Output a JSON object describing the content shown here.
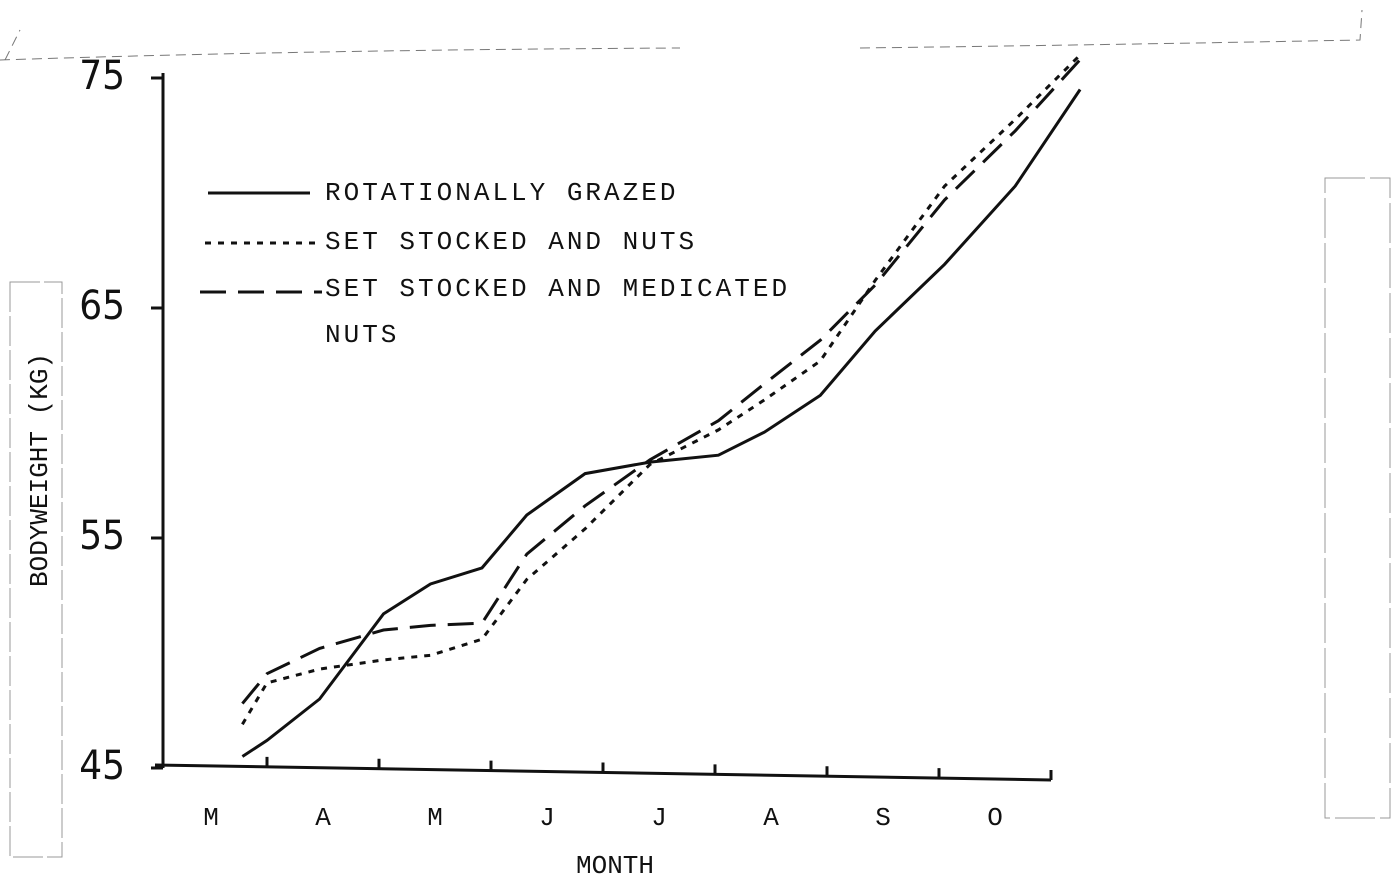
{
  "chart_data": {
    "type": "line",
    "x_label": "MONTH",
    "y_label": "BODYWEIGHT (KG)",
    "categories": [
      "M",
      "A",
      "M",
      "J",
      "J",
      "A",
      "S",
      "O"
    ],
    "x": [
      0.78,
      1.0,
      1.47,
      2.04,
      2.46,
      2.92,
      3.32,
      3.84,
      4.42,
      5.03,
      5.44,
      5.94,
      6.43,
      7.05,
      7.68,
      8.26
    ],
    "xlim": [
      0,
      8.26
    ],
    "ylim": [
      45,
      75
    ],
    "yticks": [
      45,
      55,
      65,
      75
    ],
    "series": [
      {
        "name": "ROTATIONALLY GRAZED",
        "color": "#111111",
        "style": "solid",
        "values": [
          45.5,
          46.2,
          48.0,
          51.7,
          53.0,
          53.7,
          56.0,
          57.8,
          58.3,
          58.6,
          59.6,
          61.2,
          64.0,
          66.9,
          70.3,
          74.5
        ]
      },
      {
        "name": "SET STOCKED AND NUTS",
        "color": "#111111",
        "style": "dotted",
        "values": [
          46.9,
          48.7,
          49.3,
          49.7,
          49.9,
          50.6,
          53.2,
          55.4,
          58.2,
          59.7,
          61.0,
          62.7,
          66.2,
          70.3,
          73.2,
          76.0
        ]
      },
      {
        "name": "SET STOCKED AND MEDICATED NUTS",
        "color": "#111111",
        "style": "dashed",
        "values": [
          47.8,
          49.1,
          50.2,
          51.0,
          51.2,
          51.3,
          54.3,
          56.4,
          58.4,
          60.1,
          61.7,
          63.6,
          66.0,
          69.7,
          72.7,
          75.8
        ]
      }
    ]
  }
}
